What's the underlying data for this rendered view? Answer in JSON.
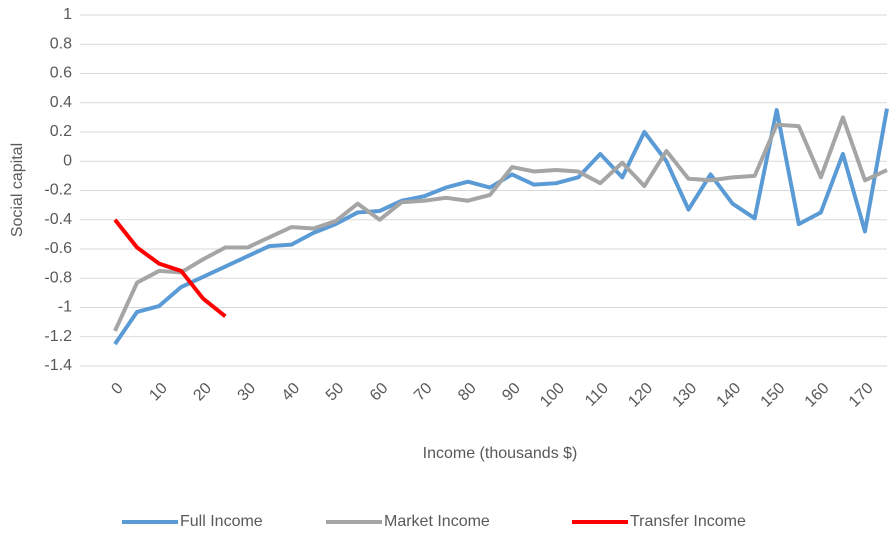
{
  "chart_data": {
    "type": "line",
    "y_label": "Social capital",
    "x_label": "Income (thousands $)",
    "categories": [
      "0",
      null,
      "10",
      null,
      "20",
      null,
      "30",
      null,
      "40",
      null,
      "50",
      null,
      "60",
      null,
      "70",
      null,
      "80",
      null,
      "90",
      null,
      "100",
      null,
      "110",
      null,
      "120",
      null,
      "130",
      null,
      "140",
      null,
      "150",
      null,
      "160",
      null,
      "170",
      null
    ],
    "series": [
      {
        "name": "Full Income",
        "color": "#5b9bd5",
        "values": [
          -1.25,
          -1.03,
          -0.99,
          -0.86,
          -0.79,
          -0.72,
          -0.65,
          -0.58,
          -0.57,
          -0.49,
          -0.43,
          -0.35,
          -0.34,
          -0.27,
          -0.24,
          -0.18,
          -0.14,
          -0.18,
          -0.09,
          -0.16,
          -0.15,
          -0.11,
          0.05,
          -0.11,
          0.2,
          0,
          -0.33,
          -0.09,
          -0.29,
          -0.39,
          0.35,
          -0.43,
          -0.35,
          0.05,
          -0.48,
          0.36
        ]
      },
      {
        "name": "Market Income",
        "color": "#a5a5a5",
        "values": [
          -1.16,
          -0.83,
          -0.75,
          -0.76,
          -0.67,
          -0.59,
          -0.59,
          -0.52,
          -0.45,
          -0.46,
          -0.41,
          -0.29,
          -0.4,
          -0.28,
          -0.27,
          -0.25,
          -0.27,
          -0.23,
          -0.04,
          -0.07,
          -0.06,
          -0.07,
          -0.15,
          -0.01,
          -0.17,
          0.07,
          -0.12,
          -0.13,
          -0.11,
          -0.1,
          0.25,
          0.24,
          -0.11,
          0.3,
          -0.13,
          -0.06
        ]
      },
      {
        "name": "Transfer Income",
        "color": "#ff0000",
        "values": [
          -0.4,
          -0.59,
          -0.7,
          -0.75,
          -0.94,
          -1.06,
          null,
          null,
          null,
          null,
          null,
          null,
          null,
          null,
          null,
          null,
          null,
          null,
          null,
          null,
          null,
          null,
          null,
          null,
          null,
          null,
          null,
          null,
          null,
          null,
          null,
          null,
          null,
          null,
          null,
          null
        ]
      }
    ],
    "ylim": [
      -1.4,
      1
    ],
    "yticks": [
      -1.4,
      -1.2,
      -1,
      -0.8,
      -0.6,
      -0.4,
      -0.2,
      0,
      0.2,
      0.4,
      0.6,
      0.8,
      1
    ],
    "grid": true,
    "legend": "bottom"
  }
}
